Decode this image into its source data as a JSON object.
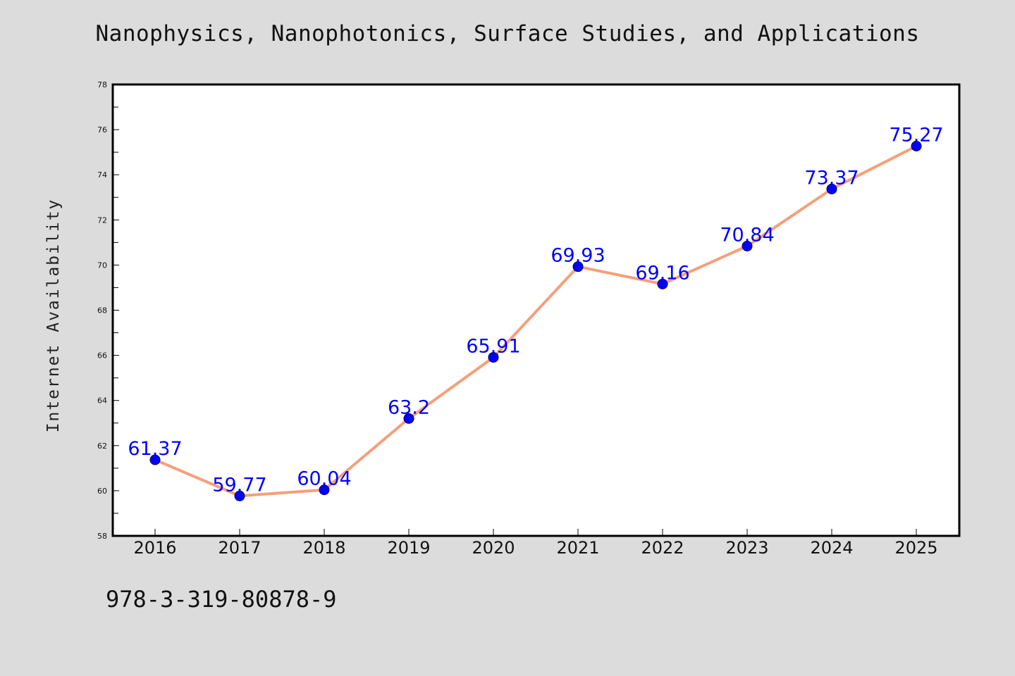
{
  "chart_data": {
    "type": "line",
    "title": "Nanophysics, Nanophotonics, Surface Studies, and Applications",
    "xlabel": "",
    "ylabel": "Internet Availability",
    "categories": [
      "2016",
      "2017",
      "2018",
      "2019",
      "2020",
      "2021",
      "2022",
      "2023",
      "2024",
      "2025"
    ],
    "series": [
      {
        "values": [
          61.37,
          59.77,
          60.04,
          63.2,
          65.91,
          69.93,
          69.16,
          70.84,
          73.37,
          75.27
        ],
        "labels": [
          "61.37",
          "59.77",
          "60.04",
          "63.2",
          "65.91",
          "69.93",
          "69.16",
          "70.84",
          "73.37",
          "75.27"
        ]
      }
    ],
    "ylim": [
      58,
      78
    ],
    "yticks": [
      "58",
      "60",
      "62",
      "64",
      "66",
      "68",
      "70",
      "72",
      "74",
      "76",
      "78"
    ],
    "grid": false,
    "colors": {
      "line": "#f4a07a",
      "marker": "#0000ff",
      "label": "#0000ff",
      "background": "#dcdcdc",
      "plot_bg": "#ffffff"
    }
  },
  "footer": {
    "code": "978-3-319-80878-9"
  }
}
